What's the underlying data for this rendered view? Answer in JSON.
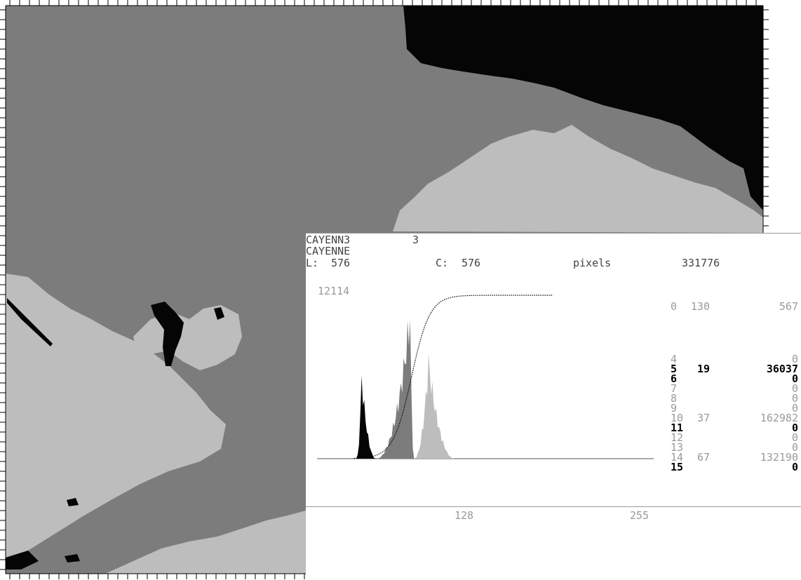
{
  "image": {
    "colors": {
      "water": "#7c7c7c",
      "land": "#bdbdbd",
      "dark": "#050505",
      "frame": "#ffffff",
      "ruler": "#000000"
    }
  },
  "panel": {
    "file_name": "CAYENN3",
    "band": "3",
    "image_name": "CAYENNE",
    "lines_label": "L:",
    "lines": "576",
    "cols_label": "C:",
    "cols": "576",
    "pixels_label": "pixels",
    "pixels": "331776",
    "ymax": "12114",
    "axis_mid": "128",
    "axis_end": "255",
    "top_row": {
      "class": "0",
      "value": "130",
      "count": "567"
    },
    "rows": [
      {
        "class": "4",
        "value": "",
        "count": "0",
        "style": "g"
      },
      {
        "class": "5",
        "value": "19",
        "count": "36037",
        "style": "b"
      },
      {
        "class": "6",
        "value": "",
        "count": "0",
        "style": "b"
      },
      {
        "class": "7",
        "value": "",
        "count": "0",
        "style": "g"
      },
      {
        "class": "8",
        "value": "",
        "count": "0",
        "style": "g"
      },
      {
        "class": "9",
        "value": "",
        "count": "0",
        "style": "g"
      },
      {
        "class": "10",
        "value": "37",
        "count": "162982",
        "style": "g"
      },
      {
        "class": "11",
        "value": "",
        "count": "0",
        "style": "b"
      },
      {
        "class": "12",
        "value": "",
        "count": "0",
        "style": "g"
      },
      {
        "class": "13",
        "value": "",
        "count": "0",
        "style": "g"
      },
      {
        "class": "14",
        "value": "67",
        "count": "132190",
        "style": "g"
      },
      {
        "class": "15",
        "value": "",
        "count": "0",
        "style": "b"
      }
    ]
  }
}
